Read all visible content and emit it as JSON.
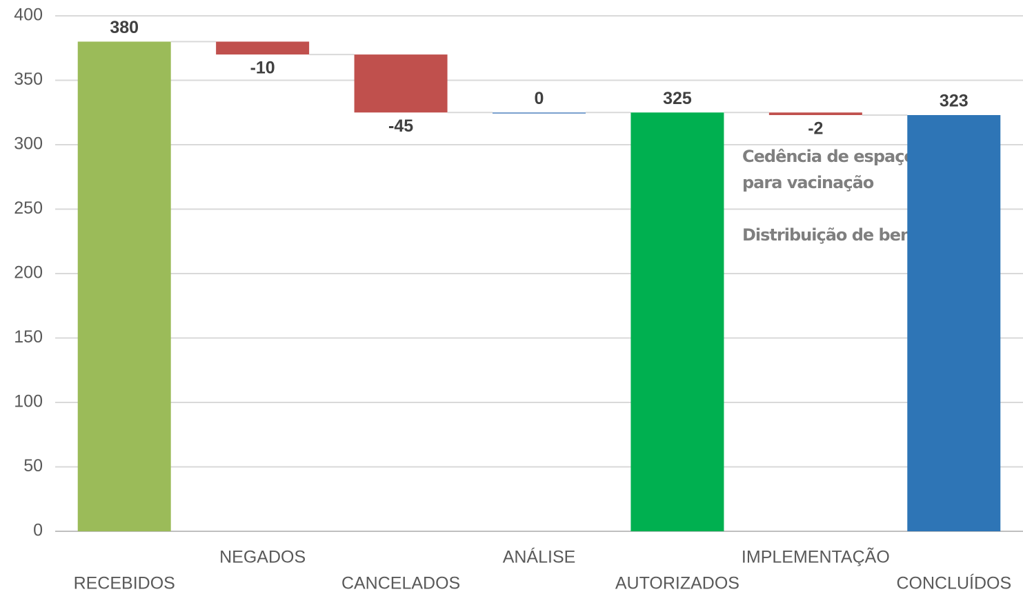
{
  "chart_data": {
    "type": "waterfall",
    "categories": [
      "RECEBIDOS",
      "NEGADOS",
      "CANCELADOS",
      "ANÁLISE",
      "AUTORIZADOS",
      "IMPLEMENTAÇÃO",
      "CONCLUÍDOS"
    ],
    "values": [
      380,
      -10,
      -45,
      0,
      325,
      -2,
      323
    ],
    "is_total": [
      true,
      false,
      false,
      false,
      true,
      false,
      true
    ],
    "colors": [
      "#9bbb59",
      "#c0504d",
      "#c0504d",
      "#4f81bd",
      "#00b050",
      "#c0504d",
      "#2e75b6"
    ],
    "ylim": [
      0,
      400
    ],
    "yticks": [
      0,
      50,
      100,
      150,
      200,
      250,
      300,
      350,
      400
    ],
    "grid": true,
    "annotations": [
      "Cedência de espaço",
      "para vacinação",
      "Distribuição de bens"
    ]
  }
}
